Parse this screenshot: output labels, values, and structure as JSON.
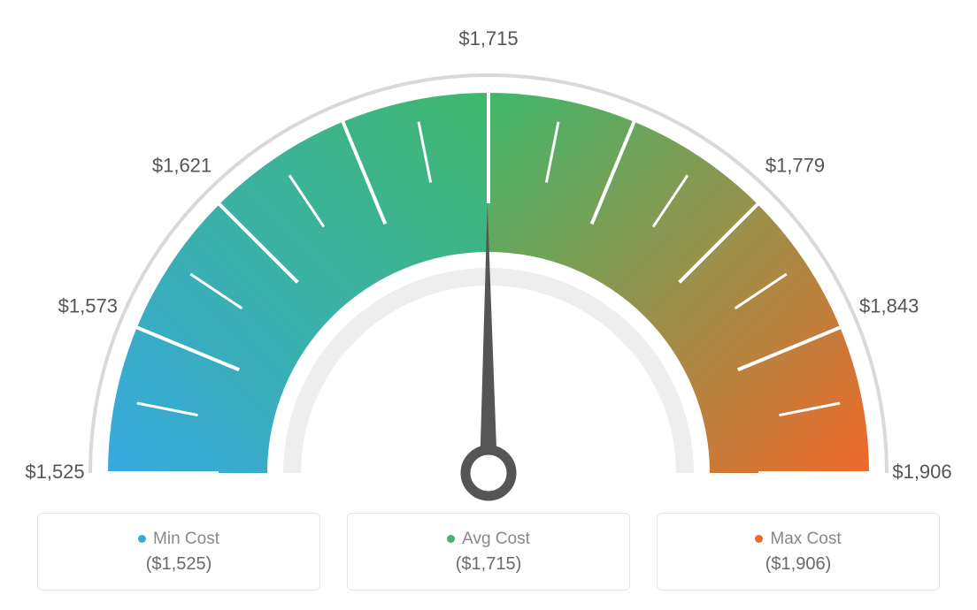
{
  "gauge": {
    "type": "gauge",
    "min_value": 1525,
    "max_value": 1906,
    "avg_value": 1715,
    "needle_value": 1715,
    "tick_labels": [
      "$1,525",
      "$1,573",
      "$1,621",
      "",
      "$1,715",
      "",
      "$1,779",
      "$1,843",
      "$1,906"
    ],
    "tick_count_total": 17,
    "outer_stroke": "#d9d9d9",
    "inner_mask_color": "#eeeeee",
    "needle_color": "#555555",
    "label_color": "#555555",
    "label_fontsize": 22,
    "arc_colors": {
      "start": "#37a9e1",
      "mid": "#3fb86b",
      "end": "#f0692a"
    },
    "background_color": "#ffffff"
  },
  "legend": {
    "items": [
      {
        "label": "Min Cost",
        "value": "($1,525)",
        "dot_color": "#37a9e1"
      },
      {
        "label": "Avg Cost",
        "value": "($1,715)",
        "dot_color": "#3fb86b"
      },
      {
        "label": "Max Cost",
        "value": "($1,906)",
        "dot_color": "#f0692a"
      }
    ],
    "card_border": "#e6e6e6",
    "label_color": "#888888",
    "value_color": "#6a6a6a",
    "label_fontsize": 19,
    "value_fontsize": 20
  }
}
